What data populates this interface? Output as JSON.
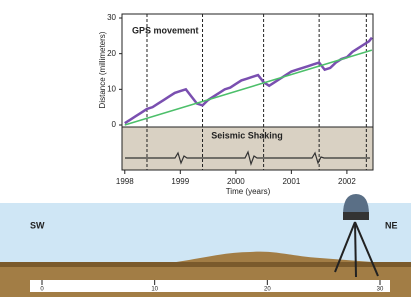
{
  "chart_data": {
    "type": "line",
    "title": "GPS movement",
    "panel_title": "Seismic Shaking",
    "xlabel": "Time (years)",
    "ylabel": "Distance (millimeters)",
    "xlim": [
      1997.95,
      2002.47
    ],
    "ylim": [
      0,
      30
    ],
    "xticks": [
      1998,
      1999,
      2000,
      2001,
      2002
    ],
    "yticks": [
      0,
      10,
      20,
      30
    ],
    "event_lines": [
      1998.4,
      1999.4,
      2000.5,
      2001.5,
      2002.35
    ],
    "series": [
      {
        "color": "#7a4fb0",
        "x": [
          1998.0,
          1998.1,
          1998.2,
          1998.3,
          1998.4,
          1998.5,
          1998.6,
          1998.7,
          1998.8,
          1998.9,
          1999.0,
          1999.1,
          1999.2,
          1999.3,
          1999.4,
          1999.5,
          1999.6,
          1999.7,
          1999.8,
          1999.9,
          2000.0,
          2000.1,
          2000.2,
          2000.3,
          2000.4,
          2000.5,
          2000.6,
          2000.7,
          2000.8,
          2000.9,
          2001.0,
          2001.1,
          2001.2,
          2001.3,
          2001.4,
          2001.5,
          2001.6,
          2001.7,
          2001.8,
          2001.9,
          2002.0,
          2002.1,
          2002.2,
          2002.3,
          2002.4,
          2002.45
        ],
        "values": [
          0.5,
          1.5,
          2.5,
          3.5,
          4.5,
          5,
          6,
          7,
          8,
          9,
          9.5,
          10,
          8,
          6,
          5.5,
          7,
          8,
          9,
          10,
          10.5,
          11.5,
          12.5,
          13,
          13.5,
          14,
          12,
          11,
          12,
          13,
          14,
          15,
          15.5,
          16,
          16.5,
          17,
          17.5,
          15.5,
          16,
          17.5,
          18.5,
          19,
          20.5,
          21.5,
          22.5,
          23.5,
          24.5
        ]
      },
      {
        "color": "#4cbf6a",
        "x": [
          1998.0,
          2002.45
        ],
        "values": [
          0,
          21
        ]
      }
    ]
  },
  "scene": {
    "left_label": "SW",
    "right_label": "NE",
    "ruler_ticks": [
      0,
      10,
      20,
      30
    ]
  }
}
